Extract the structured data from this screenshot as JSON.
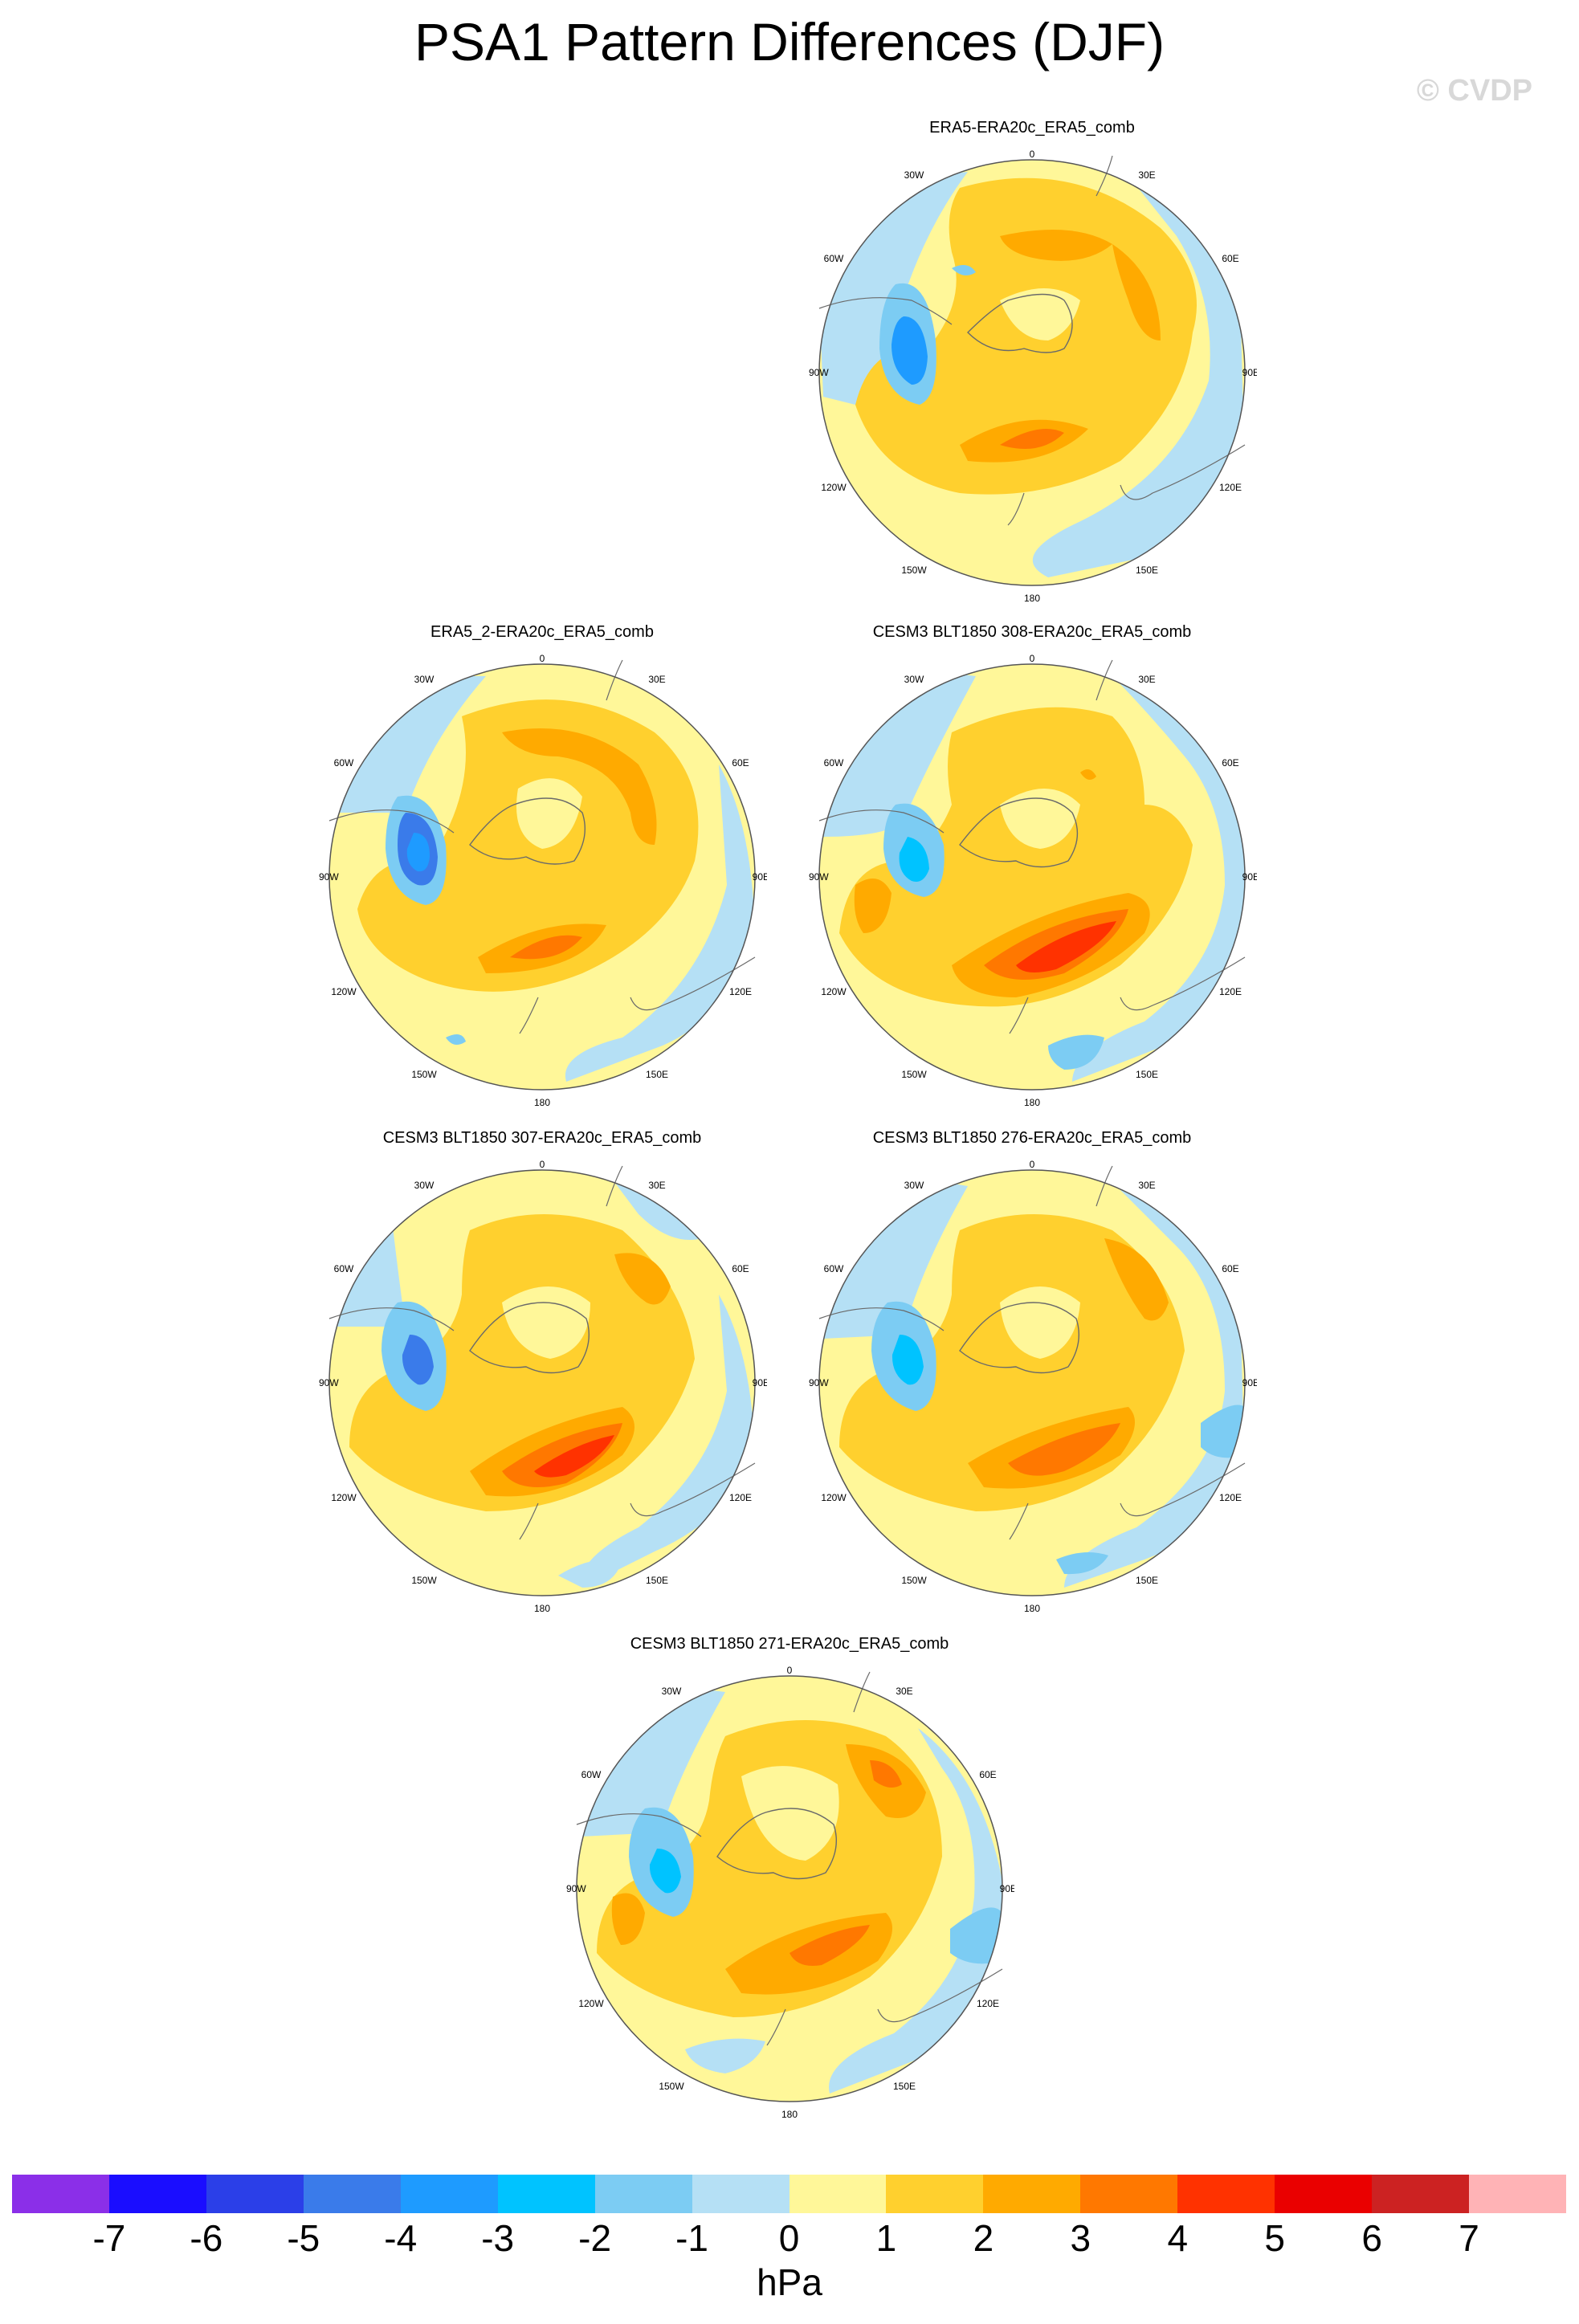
{
  "title": "PSA1 Pattern Differences (DJF)",
  "watermark": "© CVDP",
  "lon_labels": [
    "0",
    "30E",
    "60E",
    "90E",
    "120E",
    "150E",
    "180",
    "150W",
    "120W",
    "90W",
    "60W",
    "30W"
  ],
  "panels": [
    {
      "title": "ERA5-ERA20c_ERA5_comb"
    },
    {
      "title": "ERA5_2-ERA20c_ERA5_comb"
    },
    {
      "title": "CESM3 BLT1850 308-ERA20c_ERA5_comb"
    },
    {
      "title": "CESM3 BLT1850 307-ERA20c_ERA5_comb"
    },
    {
      "title": "CESM3 BLT1850 276-ERA20c_ERA5_comb"
    },
    {
      "title": "CESM3 BLT1850 271-ERA20c_ERA5_comb"
    }
  ],
  "colorbar": {
    "units": "hPa",
    "ticks": [
      "-7",
      "-6",
      "-5",
      "-4",
      "-3",
      "-2",
      "-1",
      "0",
      "1",
      "2",
      "3",
      "4",
      "5",
      "6",
      "7"
    ],
    "colors": [
      "#8b2fe8",
      "#1a0dff",
      "#2b3fe8",
      "#3a7bea",
      "#1e9bff",
      "#00c3ff",
      "#7cccf3",
      "#b5e0f5",
      "#fff799",
      "#ffd02e",
      "#ffaa00",
      "#ff7800",
      "#ff3200",
      "#ea0000",
      "#cc2222",
      "#ffb3b6"
    ]
  }
}
